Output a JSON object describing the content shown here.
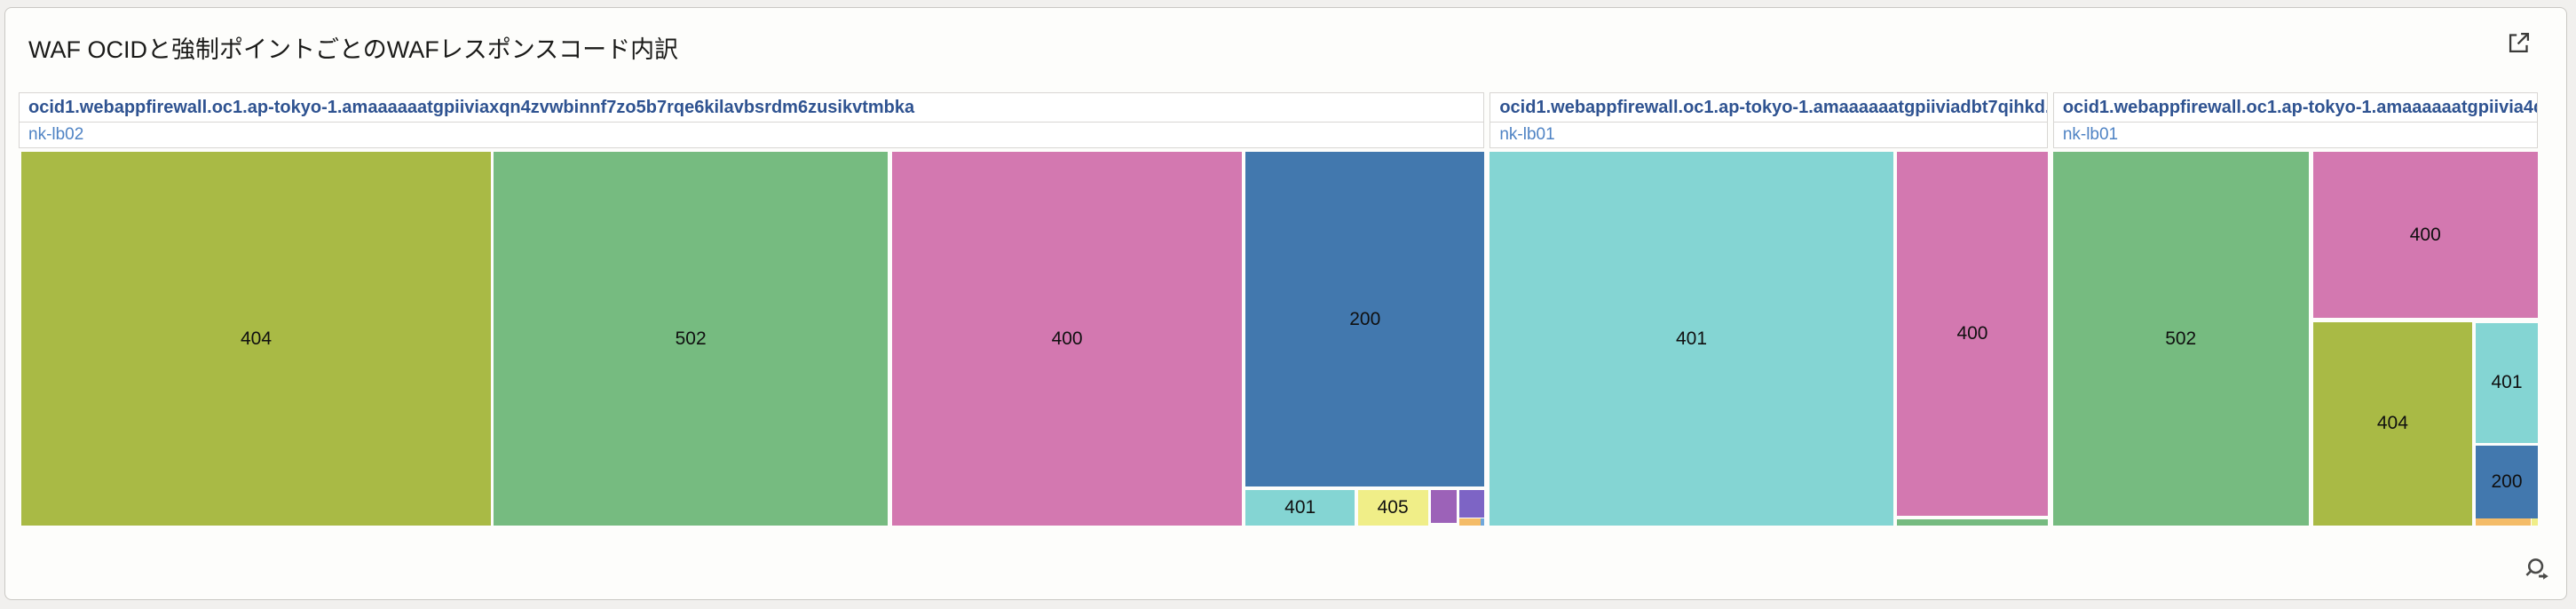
{
  "header": {
    "title": "WAF OCIDと強制ポイントごとのWAFレスポンスコード内訳",
    "open_icon": "open-in-new-window",
    "drill_icon": "magnifier-arrow"
  },
  "chart_data": {
    "type": "treemap",
    "title": "WAF OCIDと強制ポイントごとのWAFレスポンスコード内訳",
    "legend": "none",
    "note": "tile rects are percent of each group body; area encodes response-code share",
    "groups": [
      {
        "waf_ocid": "ocid1.webappfirewall.oc1.ap-tokyo-1.amaaaaaatgpiiviaxqn4zvwbinnf7zo5b7rqe6kilavbsrdm6zusikvtmbka",
        "enforcement_point": "nk-lb02",
        "width_pct": 58.2,
        "tiles": [
          {
            "code": "404",
            "color": "#A9BA45",
            "rect": {
              "x": 0.2,
              "y": 0,
              "w": 32.0,
              "h": 100
            }
          },
          {
            "code": "502",
            "color": "#76BB80",
            "rect": {
              "x": 32.4,
              "y": 0,
              "w": 26.9,
              "h": 100
            }
          },
          {
            "code": "400",
            "color": "#D378B0",
            "rect": {
              "x": 59.6,
              "y": 0,
              "w": 23.85,
              "h": 100
            }
          },
          {
            "code": "200",
            "color": "#4278AE",
            "rect": {
              "x": 83.7,
              "y": 0,
              "w": 16.3,
              "h": 89.6
            }
          },
          {
            "code": "401",
            "color": "#84D5D3",
            "rect": {
              "x": 83.7,
              "y": 90.6,
              "w": 7.45,
              "h": 9.4
            }
          },
          {
            "code": "405",
            "color": "#F0EE88",
            "rect": {
              "x": 91.35,
              "y": 90.6,
              "w": 4.8,
              "h": 9.4
            }
          },
          {
            "code": "",
            "color": "#9C62B8",
            "rect": {
              "x": 96.35,
              "y": 90.6,
              "w": 1.76,
              "h": 8.6
            }
          },
          {
            "code": "",
            "color": "#7D64C5",
            "rect": {
              "x": 98.3,
              "y": 90.6,
              "w": 1.7,
              "h": 7.2
            }
          },
          {
            "code": "",
            "color": "#F4BC68",
            "rect": {
              "x": 98.3,
              "y": 98.2,
              "w": 1.6,
              "h": 1.8
            }
          },
          {
            "code": "",
            "color": "#6FA8DC",
            "rect": {
              "x": 99.72,
              "y": 98.2,
              "w": 0.28,
              "h": 1.8
            }
          }
        ]
      },
      {
        "waf_ocid": "ocid1.webappfirewall.oc1.ap-tokyo-1.amaaaaaatgpiiviadbt7qihkd...",
        "enforcement_point": "nk-lb01",
        "width_pct": 22.15,
        "tiles": [
          {
            "code": "401",
            "color": "#84D5D3",
            "rect": {
              "x": 0,
              "y": 0,
              "w": 72.3,
              "h": 100
            }
          },
          {
            "code": "400",
            "color": "#D378B0",
            "rect": {
              "x": 73,
              "y": 0,
              "w": 27,
              "h": 97.4
            }
          },
          {
            "code": "",
            "color": "#76BB80",
            "rect": {
              "x": 73,
              "y": 98.4,
              "w": 27,
              "h": 1.6
            }
          }
        ]
      },
      {
        "waf_ocid": "ocid1.webappfirewall.oc1.ap-tokyo-1.amaaaaaatgpiivia4d...",
        "enforcement_point": "nk-lb01",
        "width_pct": 19.25,
        "tiles": [
          {
            "code": "502",
            "color": "#76BB80",
            "rect": {
              "x": 0,
              "y": 0,
              "w": 52.7,
              "h": 100
            }
          },
          {
            "code": "400",
            "color": "#D378B0",
            "rect": {
              "x": 53.6,
              "y": 0,
              "w": 46.4,
              "h": 44.5
            }
          },
          {
            "code": "404",
            "color": "#A9BA45",
            "rect": {
              "x": 53.6,
              "y": 45.6,
              "w": 32.9,
              "h": 54.4
            }
          },
          {
            "code": "401",
            "color": "#84D5D3",
            "rect": {
              "x": 87.2,
              "y": 45.9,
              "w": 12.8,
              "h": 31.9
            }
          },
          {
            "code": "200",
            "color": "#4278AE",
            "rect": {
              "x": 87.2,
              "y": 78.6,
              "w": 12.8,
              "h": 19.4
            }
          },
          {
            "code": "",
            "color": "#F4BC68",
            "rect": {
              "x": 87.2,
              "y": 98.2,
              "w": 11.3,
              "h": 1.8
            }
          },
          {
            "code": "",
            "color": "#F0EE88",
            "rect": {
              "x": 98.8,
              "y": 98.2,
              "w": 1.2,
              "h": 1.8
            }
          }
        ]
      }
    ]
  }
}
